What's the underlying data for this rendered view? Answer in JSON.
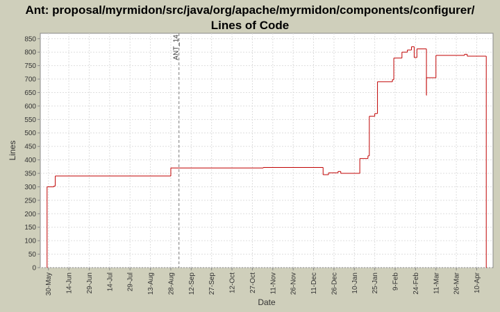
{
  "chart_data": {
    "type": "line",
    "line_style": "step",
    "title": [
      "Ant: proposal/myrmidon/src/java/org/apache/myrmidon/components/configurer/",
      "Lines of Code"
    ],
    "x_label": "Date",
    "y_label": "Lines",
    "xlim": [
      "24-May",
      "22-Apr"
    ],
    "xticks": [
      "30-May",
      "14-Jun",
      "29-Jun",
      "14-Jul",
      "29-Jul",
      "13-Aug",
      "28-Aug",
      "12-Sep",
      "27-Sep",
      "12-Oct",
      "27-Oct",
      "11-Nov",
      "26-Nov",
      "11-Dec",
      "26-Dec",
      "10-Jan",
      "25-Jan",
      "9-Feb",
      "24-Feb",
      "11-Mar",
      "26-Mar",
      "10-Apr"
    ],
    "ylim": [
      0,
      870
    ],
    "yticks": [
      0,
      50,
      100,
      150,
      200,
      250,
      300,
      350,
      400,
      450,
      500,
      550,
      600,
      650,
      700,
      750,
      800,
      850
    ],
    "grid": true,
    "series": [
      {
        "name": "Lines",
        "color": "#c00000",
        "x": [
          "29-May",
          "29-May",
          "3-Jun",
          "4-Jun",
          "28-Aug",
          "4-Nov",
          "18-Dec",
          "22-Dec",
          "29-Dec",
          "31-Dec",
          "14-Jan",
          "20-Jan",
          "21-Jan",
          "25-Jan",
          "27-Jan",
          "7-Feb",
          "8-Feb",
          "14-Feb",
          "18-Feb",
          "21-Feb",
          "23-Feb",
          "25-Feb",
          "4-Mar",
          "4-Mar",
          "11-Mar",
          "1-Apr",
          "3-Apr",
          "17-Apr"
        ],
        "values": [
          0,
          300,
          303,
          340,
          370,
          372,
          345,
          352,
          357,
          350,
          405,
          415,
          562,
          572,
          690,
          698,
          778,
          800,
          808,
          820,
          780,
          812,
          640,
          705,
          788,
          792,
          785,
          0
        ]
      }
    ],
    "annotations": [
      {
        "x": "3-Sep",
        "label": "ANT_14"
      }
    ]
  }
}
